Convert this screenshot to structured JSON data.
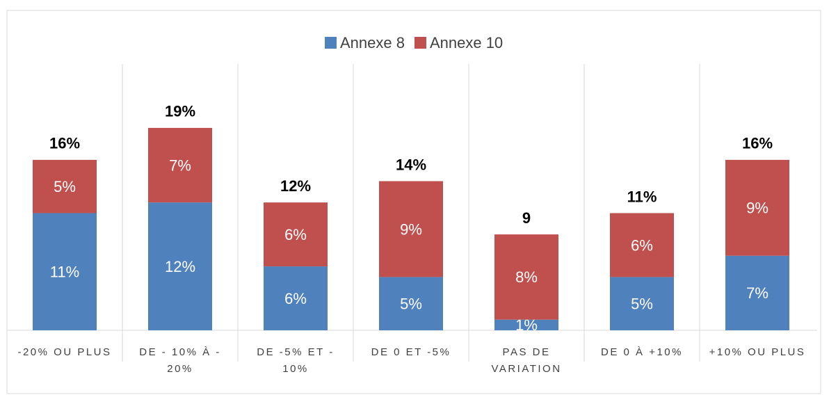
{
  "chart_data": {
    "type": "stacked_bar",
    "categories": [
      "-20% OU PLUS",
      "DE - 10% À - 20%",
      "DE -5% ET - 10%",
      "DE 0 ET -5%",
      "PAS DE VARIATION",
      "DE 0 À +10%",
      "+10% OU PLUS"
    ],
    "series": [
      {
        "name": "Annexe 8",
        "color": "#4f81bd",
        "values": [
          11,
          12,
          6,
          5,
          1,
          5,
          7
        ],
        "value_labels": [
          "11%",
          "12%",
          "6%",
          "5%",
          "1%",
          "5%",
          "7%"
        ]
      },
      {
        "name": "Annexe 10",
        "color": "#c0504d",
        "values": [
          5,
          7,
          6,
          9,
          8,
          6,
          9
        ],
        "value_labels": [
          "5%",
          "7%",
          "6%",
          "9%",
          "8%",
          "6%",
          "9%"
        ]
      }
    ],
    "totals": {
      "values": [
        16,
        19,
        12,
        14,
        9,
        11,
        16
      ],
      "value_labels": [
        "16%",
        "19%",
        "12%",
        "14%",
        "9",
        "11%",
        "16%"
      ]
    },
    "ylim": [
      0,
      25
    ],
    "legend": "top"
  }
}
